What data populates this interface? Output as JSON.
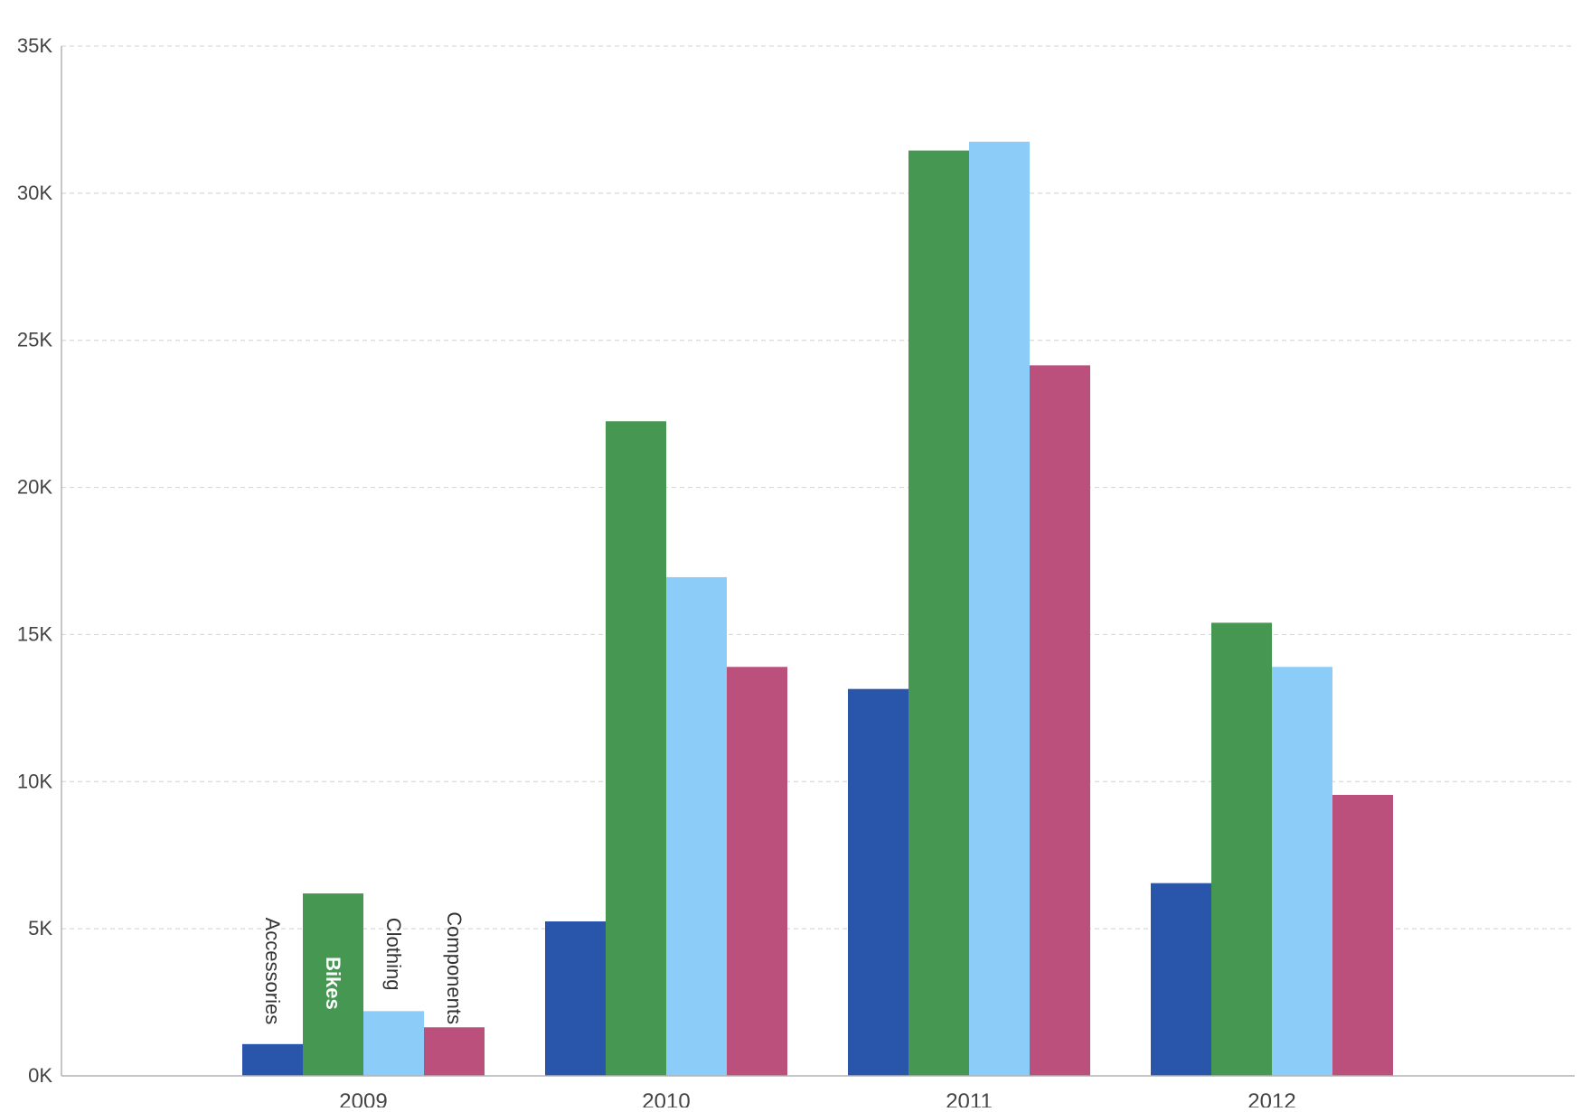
{
  "chart_data": {
    "type": "bar",
    "categories": [
      "2009",
      "2010",
      "2011",
      "2012"
    ],
    "series": [
      {
        "name": "Accessories",
        "color": "#2955aa",
        "label_color": "#333333",
        "values": [
          1080,
          5250,
          13150,
          6550
        ]
      },
      {
        "name": "Bikes",
        "color": "#469752",
        "label_color": "#ffffff",
        "values": [
          6200,
          22250,
          31450,
          15400
        ]
      },
      {
        "name": "Clothing",
        "color": "#8bccf8",
        "label_color": "#333333",
        "values": [
          2200,
          16950,
          31750,
          13900
        ]
      },
      {
        "name": "Components",
        "color": "#bb507c",
        "label_color": "#333333",
        "values": [
          1650,
          13900,
          24150,
          9550
        ]
      }
    ],
    "title": "",
    "xlabel": "",
    "ylabel": "",
    "ylim": [
      0,
      35000
    ],
    "yticks": [
      0,
      5000,
      10000,
      15000,
      20000,
      25000,
      30000,
      35000
    ],
    "ytick_labels": [
      "0K",
      "5K",
      "10K",
      "15K",
      "20K",
      "25K",
      "30K",
      "35K"
    ],
    "grid": true,
    "grid_style": "dashed",
    "legend": "none",
    "series_labels_on_category": "2009"
  }
}
